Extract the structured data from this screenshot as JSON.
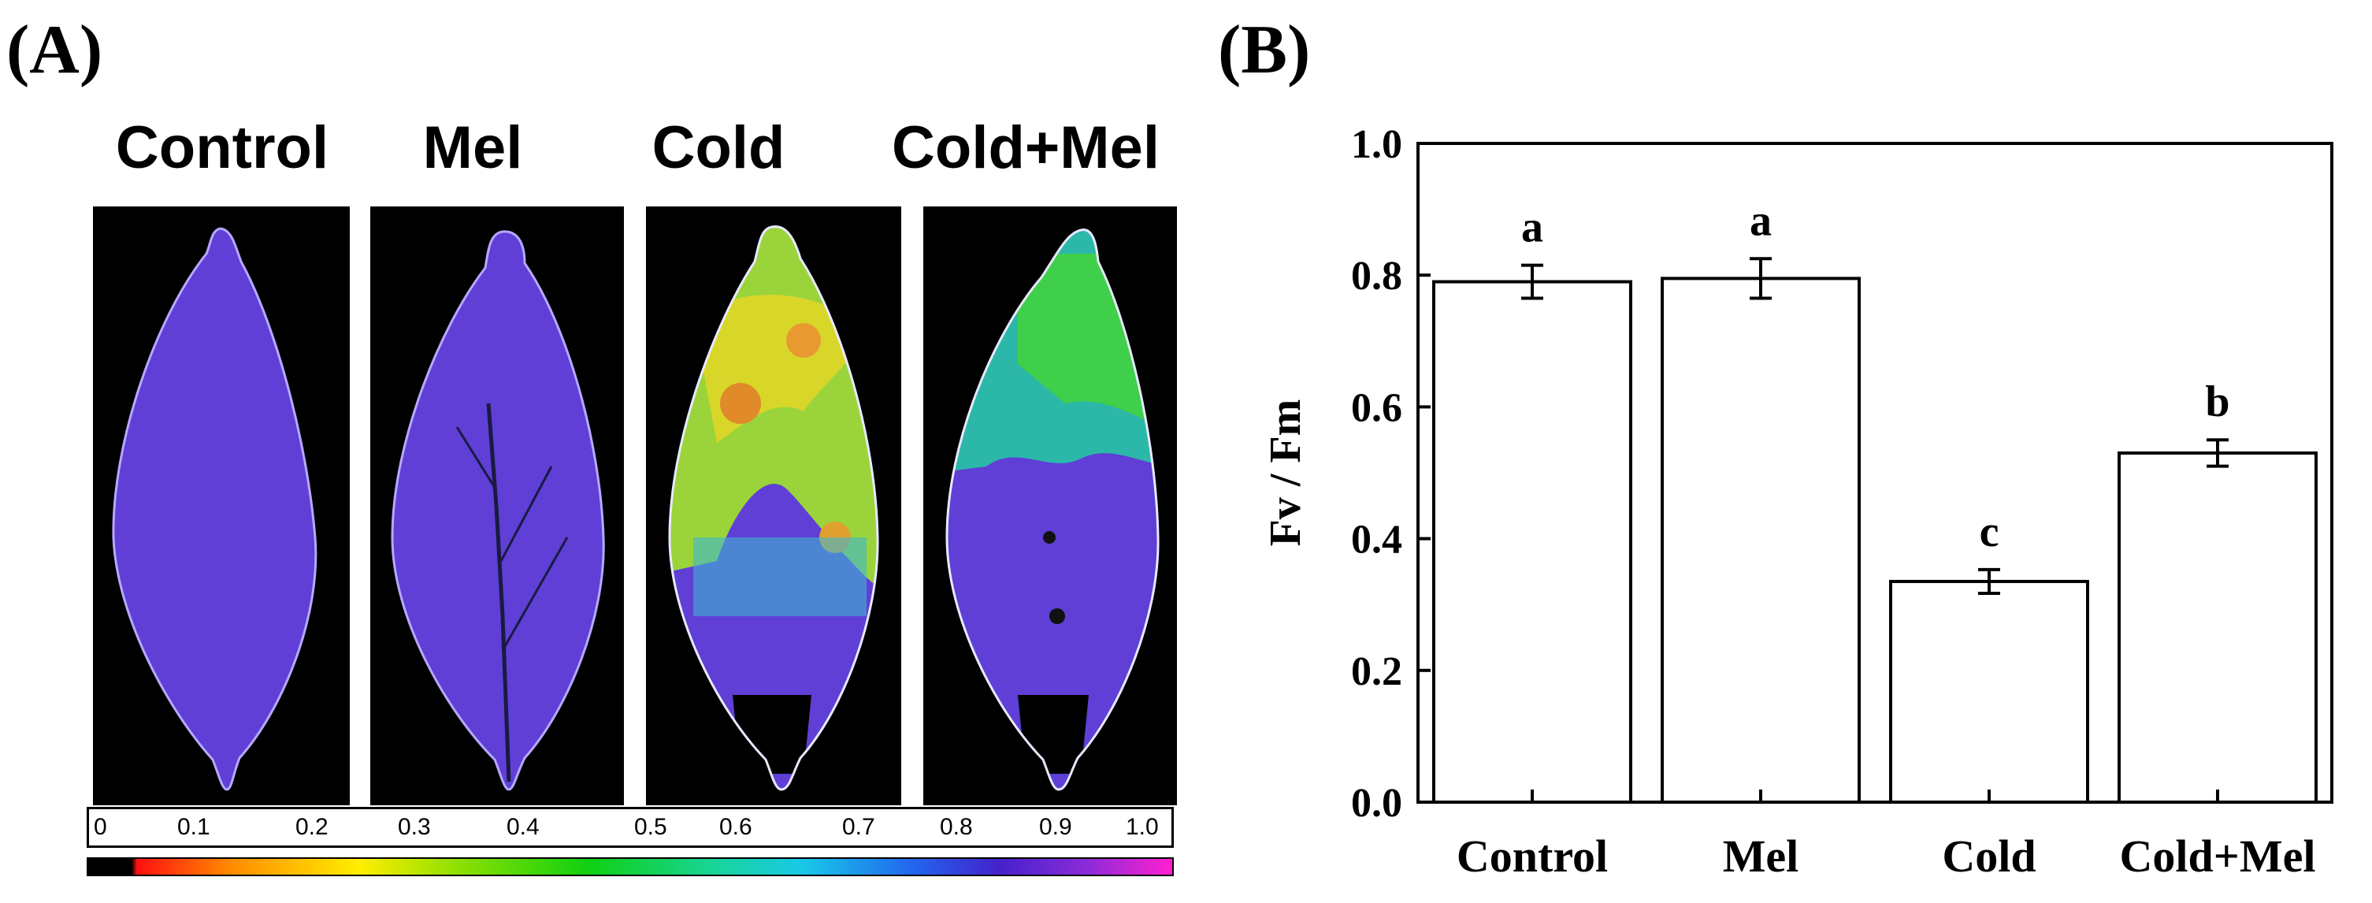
{
  "panels": {
    "a_label": "(A)",
    "b_label": "(B)"
  },
  "images": {
    "titles": [
      "Control",
      "Mel",
      "Cold",
      "Cold+Mel"
    ],
    "scale_ticks": [
      "0",
      "0.1",
      "0.2",
      "0.3",
      "0.4",
      "0.5",
      "0.6",
      "0.7",
      "0.8",
      "0.9",
      "1.0"
    ]
  },
  "colors": {
    "control_leaf": "#5f3fd6",
    "cold_leaf_high": "#d9d62a",
    "cold_leaf_mid": "#4fc95a",
    "background": "#000000"
  },
  "chart_data": {
    "type": "bar",
    "categories": [
      "Control",
      "Mel",
      "Cold",
      "Cold+Mel"
    ],
    "values": [
      0.79,
      0.795,
      0.335,
      0.53
    ],
    "errors": [
      0.025,
      0.03,
      0.018,
      0.02
    ],
    "significance_letters": [
      "a",
      "a",
      "c",
      "b"
    ],
    "title": "",
    "xlabel": "",
    "ylabel": "Fv / Fm",
    "ylim": [
      0.0,
      1.0
    ],
    "yticks": [
      "0.0",
      "0.2",
      "0.4",
      "0.6",
      "0.8",
      "1.0"
    ],
    "bar_color": "#ffffff"
  }
}
